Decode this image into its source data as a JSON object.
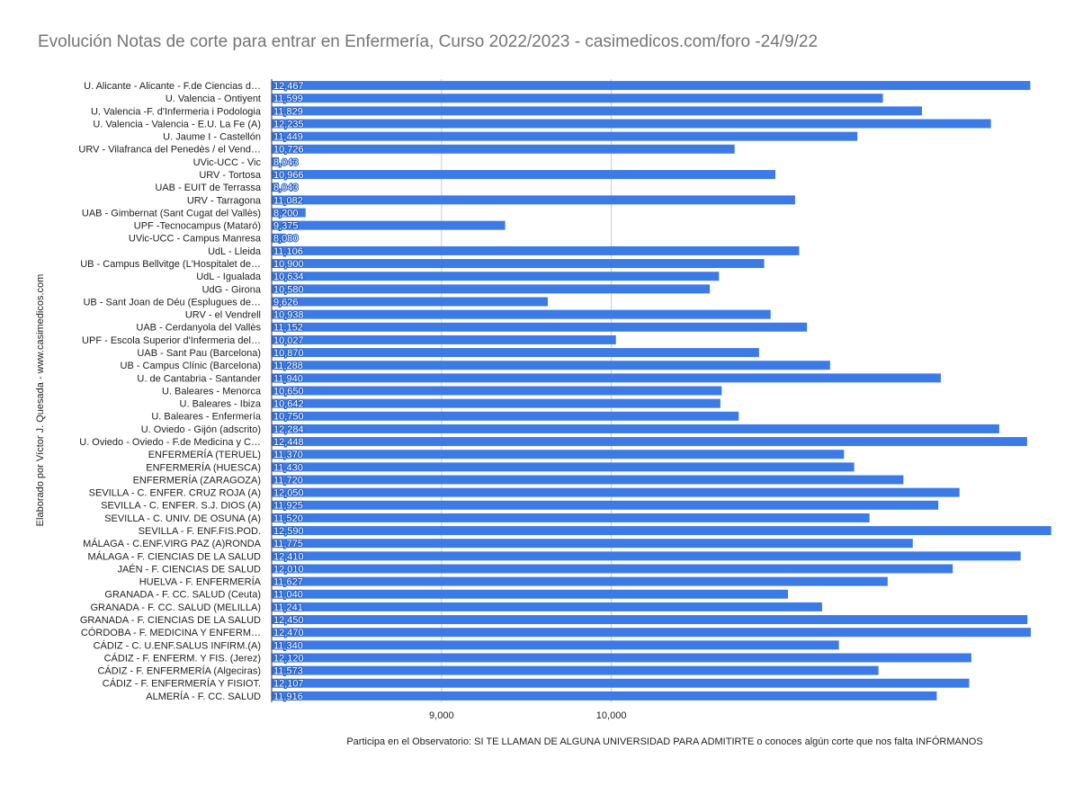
{
  "chart_data": {
    "type": "hbar",
    "title": "Evolución Notas de corte para entrar en Enfermería, Curso 2022/2023  - casimedicos.com/foro -24/9/22",
    "y_label": "Elaborado por Víctor J. Quesada -  www.casimedicos.com",
    "note": "Participa en el Observatorio: SI TE LLAMAN DE ALGUNA UNIVERSIDAD PARA ADMITIRTE o conoces algún corte que nos falta INFÓRMANOS",
    "categories": [
      "U. Alicante - Alicante - F.de Ciencias d…",
      "U. Valencia - Ontiyent",
      "U. Valencia -F. d'Infermeria i Podologia",
      "U. Valencia - Valencia - E.U. La Fe (A)",
      "U. Jaume I - Castellón",
      "URV - Vilafranca del Penedès / el Vend…",
      "UVic-UCC - Vic",
      "URV - Tortosa",
      "UAB - EUIT de Terrassa",
      "URV - Tarragona",
      "UAB - Gimbernat (Sant Cugat del Vallès)",
      "UPF -Tecnocampus (Mataró)",
      "UVic-UCC -  Campus Manresa",
      "UdL - Lleida",
      "UB - Campus Bellvitge (L'Hospitalet de…",
      "UdL - Igualada",
      "UdG - Girona",
      "UB - Sant Joan de Déu (Esplugues de…",
      "URV - el Vendrell",
      "UAB - Cerdanyola del Vallès",
      "UPF - Escola Superior d'Infermeria del…",
      "UAB - Sant Pau (Barcelona)",
      "UB - Campus Clínic (Barcelona)",
      "U. de Cantabria - Santander",
      "U. Baleares - Menorca",
      "U. Baleares - Ibiza",
      "U. Baleares - Enfermería",
      "U. Oviedo - Gijón (adscrito)",
      "U. Oviedo - Oviedo - F.de Medicina y C…",
      "ENFERMERÍA (TERUEL)",
      "ENFERMERÍA (HUESCA)",
      "ENFERMERÍA (ZARAGOZA)",
      "SEVILLA - C. ENFER. CRUZ ROJA (A)",
      "SEVILLA - C. ENFER. S.J. DIOS (A)",
      "SEVILLA - C. UNIV. DE OSUNA (A)",
      "SEVILLA - F. ENF.FIS.POD.",
      "MÁLAGA - C.ENF.VIRG PAZ (A)RONDA",
      "MÁLAGA - F. CIENCIAS DE LA SALUD",
      "JAÉN - F. CIENCIAS DE SALUD",
      "HUELVA - F. ENFERMERÍA",
      "GRANADA - F. CC. SALUD (Ceuta)",
      "GRANADA - F. CC. SALUD (MELILLA)",
      "GRANADA - F. CIENCIAS DE LA SALUD",
      "CÓRDOBA - F. MEDICINA Y ENFERM…",
      "CÁDIZ  - C. U.ENF.SALUS INFIRM.(A)",
      "CÁDIZ - F. ENFERM. Y FIS. (Jerez)",
      "CÁDIZ - F. ENFERMERÍA (Algeciras)",
      "CÁDIZ - F. ENFERMERÍA Y FISIOT.",
      "ALMERÍA - F. CC. SALUD"
    ],
    "values": [
      12467,
      11599,
      11829,
      12235,
      11449,
      10726,
      8043,
      10966,
      8043,
      11082,
      8200,
      9375,
      8080,
      11106,
      10900,
      10634,
      10580,
      9626,
      10938,
      11152,
      10027,
      10870,
      11288,
      11940,
      10650,
      10642,
      10750,
      12284,
      12448,
      11370,
      11430,
      11720,
      12050,
      11925,
      11520,
      12590,
      11775,
      12410,
      12010,
      11627,
      11040,
      11241,
      12450,
      12470,
      11340,
      12120,
      11573,
      12107,
      11916
    ],
    "value_labels": [
      "12,467",
      "11,599",
      "11,829",
      "12,235",
      "11,449",
      "10,726",
      "8,043",
      "10,966",
      "8,043",
      "11,082",
      "8,200",
      "9,375",
      "8,080",
      "11,106",
      "10,900",
      "10,634",
      "10,580",
      "9,626",
      "10,938",
      "11,152",
      "10,027",
      "10,870",
      "11,288",
      "11,940",
      "10,650",
      "10,642",
      "10,750",
      "12,284",
      "12,448",
      "11,370",
      "11,430",
      "11,720",
      "12,050",
      "11,925",
      "11,520",
      "12,590",
      "11,775",
      "12,410",
      "12,010",
      "11,627",
      "11,040",
      "11,241",
      "12,450",
      "12,470",
      "11,340",
      "12,120",
      "11,573",
      "12,107",
      "11,916"
    ],
    "color": "#3c7be6",
    "xlim": [
      8000,
      12650
    ],
    "xticks": [
      {
        "value": 9000,
        "label": "9,000"
      },
      {
        "value": 10000,
        "label": "10,000"
      }
    ],
    "grid": true
  }
}
